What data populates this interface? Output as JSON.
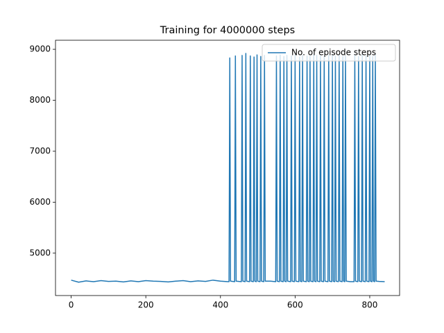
{
  "chart_data": {
    "type": "line",
    "title": "Training for 4000000 steps",
    "x": [
      0,
      20,
      40,
      60,
      80,
      100,
      120,
      140,
      160,
      180,
      200,
      220,
      240,
      260,
      280,
      300,
      320,
      340,
      360,
      380,
      400,
      420,
      423,
      425,
      427,
      438,
      440,
      442,
      456,
      458,
      460,
      466,
      468,
      470,
      478,
      480,
      482,
      488,
      490,
      492,
      496,
      498,
      500,
      506,
      508,
      510,
      516,
      518,
      520,
      534,
      548,
      550,
      552,
      558,
      560,
      562,
      568,
      570,
      572,
      576,
      578,
      580,
      588,
      590,
      592,
      598,
      600,
      602,
      610,
      612,
      614,
      618,
      620,
      622,
      630,
      632,
      634,
      638,
      640,
      642,
      648,
      650,
      652,
      656,
      658,
      660,
      666,
      668,
      670,
      676,
      678,
      680,
      688,
      690,
      692,
      698,
      700,
      702,
      706,
      708,
      710,
      716,
      718,
      720,
      726,
      728,
      730,
      733,
      735,
      737,
      748,
      758,
      760,
      762,
      768,
      770,
      772,
      778,
      780,
      782,
      788,
      790,
      792,
      798,
      800,
      802,
      806,
      808,
      810,
      813,
      815,
      817,
      825,
      840
    ],
    "series": [
      {
        "name": "No. of episode steps",
        "color": "#1f77b4",
        "values": [
          4470,
          4430,
          4455,
          4440,
          4460,
          4445,
          4450,
          4435,
          4455,
          4440,
          4460,
          4450,
          4445,
          4435,
          4450,
          4460,
          4440,
          4455,
          4445,
          4470,
          4450,
          4440,
          4440,
          8830,
          4450,
          4440,
          8870,
          4450,
          4440,
          8880,
          4450,
          4440,
          8920,
          4450,
          4440,
          8870,
          4450,
          4440,
          8850,
          4450,
          4440,
          8890,
          4450,
          4440,
          8860,
          4450,
          4440,
          8880,
          4450,
          4450,
          4440,
          8870,
          4450,
          4440,
          8890,
          4450,
          4440,
          8860,
          4450,
          4440,
          8880,
          4450,
          4440,
          8870,
          4450,
          4440,
          8890,
          4450,
          4440,
          8850,
          4450,
          4440,
          8880,
          4450,
          4440,
          8870,
          4450,
          4440,
          8860,
          4450,
          4440,
          8890,
          4450,
          4440,
          8880,
          4450,
          4440,
          8870,
          4450,
          4440,
          8860,
          4450,
          4440,
          8880,
          4450,
          4440,
          8890,
          4450,
          4440,
          8870,
          4450,
          4440,
          8880,
          4450,
          4440,
          8860,
          4450,
          4440,
          8870,
          4450,
          4440,
          4440,
          8880,
          4450,
          4440,
          8860,
          4450,
          4440,
          8890,
          4450,
          4440,
          8870,
          4450,
          4440,
          8880,
          4450,
          4440,
          8860,
          4450,
          4440,
          8890,
          4450,
          4445,
          4440
        ]
      }
    ],
    "xlim": [
      -42,
      880
    ],
    "ylim": [
      4168,
      9178
    ],
    "xticks": [
      0,
      200,
      400,
      600,
      800
    ],
    "yticks": [
      5000,
      6000,
      7000,
      8000,
      9000
    ],
    "legend": "upper right"
  }
}
